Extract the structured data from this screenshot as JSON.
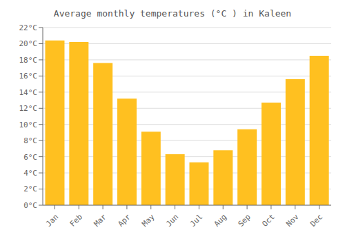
{
  "chart_data": {
    "type": "bar",
    "title": "Average monthly temperatures (°C ) in Kaleen",
    "categories": [
      "Jan",
      "Feb",
      "Mar",
      "Apr",
      "May",
      "Jun",
      "Jul",
      "Aug",
      "Sep",
      "Oct",
      "Nov",
      "Dec"
    ],
    "values": [
      20.4,
      20.2,
      17.6,
      13.2,
      9.1,
      6.3,
      5.3,
      6.8,
      9.4,
      12.7,
      15.6,
      18.5
    ],
    "color": "#FFC020",
    "ylim": [
      0,
      22
    ],
    "yticks": [
      {
        "value": 0,
        "label": "0°C"
      },
      {
        "value": 2,
        "label": "2°C"
      },
      {
        "value": 4,
        "label": "4°C"
      },
      {
        "value": 6,
        "label": "6°C"
      },
      {
        "value": 8,
        "label": "8°C"
      },
      {
        "value": 10,
        "label": "10°C"
      },
      {
        "value": 12,
        "label": "12°C"
      },
      {
        "value": 14,
        "label": "14°C"
      },
      {
        "value": 16,
        "label": "16°C"
      },
      {
        "value": 18,
        "label": "18°C"
      },
      {
        "value": 20,
        "label": "20°C"
      },
      {
        "value": 22,
        "label": "22°C"
      }
    ],
    "grid": true
  }
}
